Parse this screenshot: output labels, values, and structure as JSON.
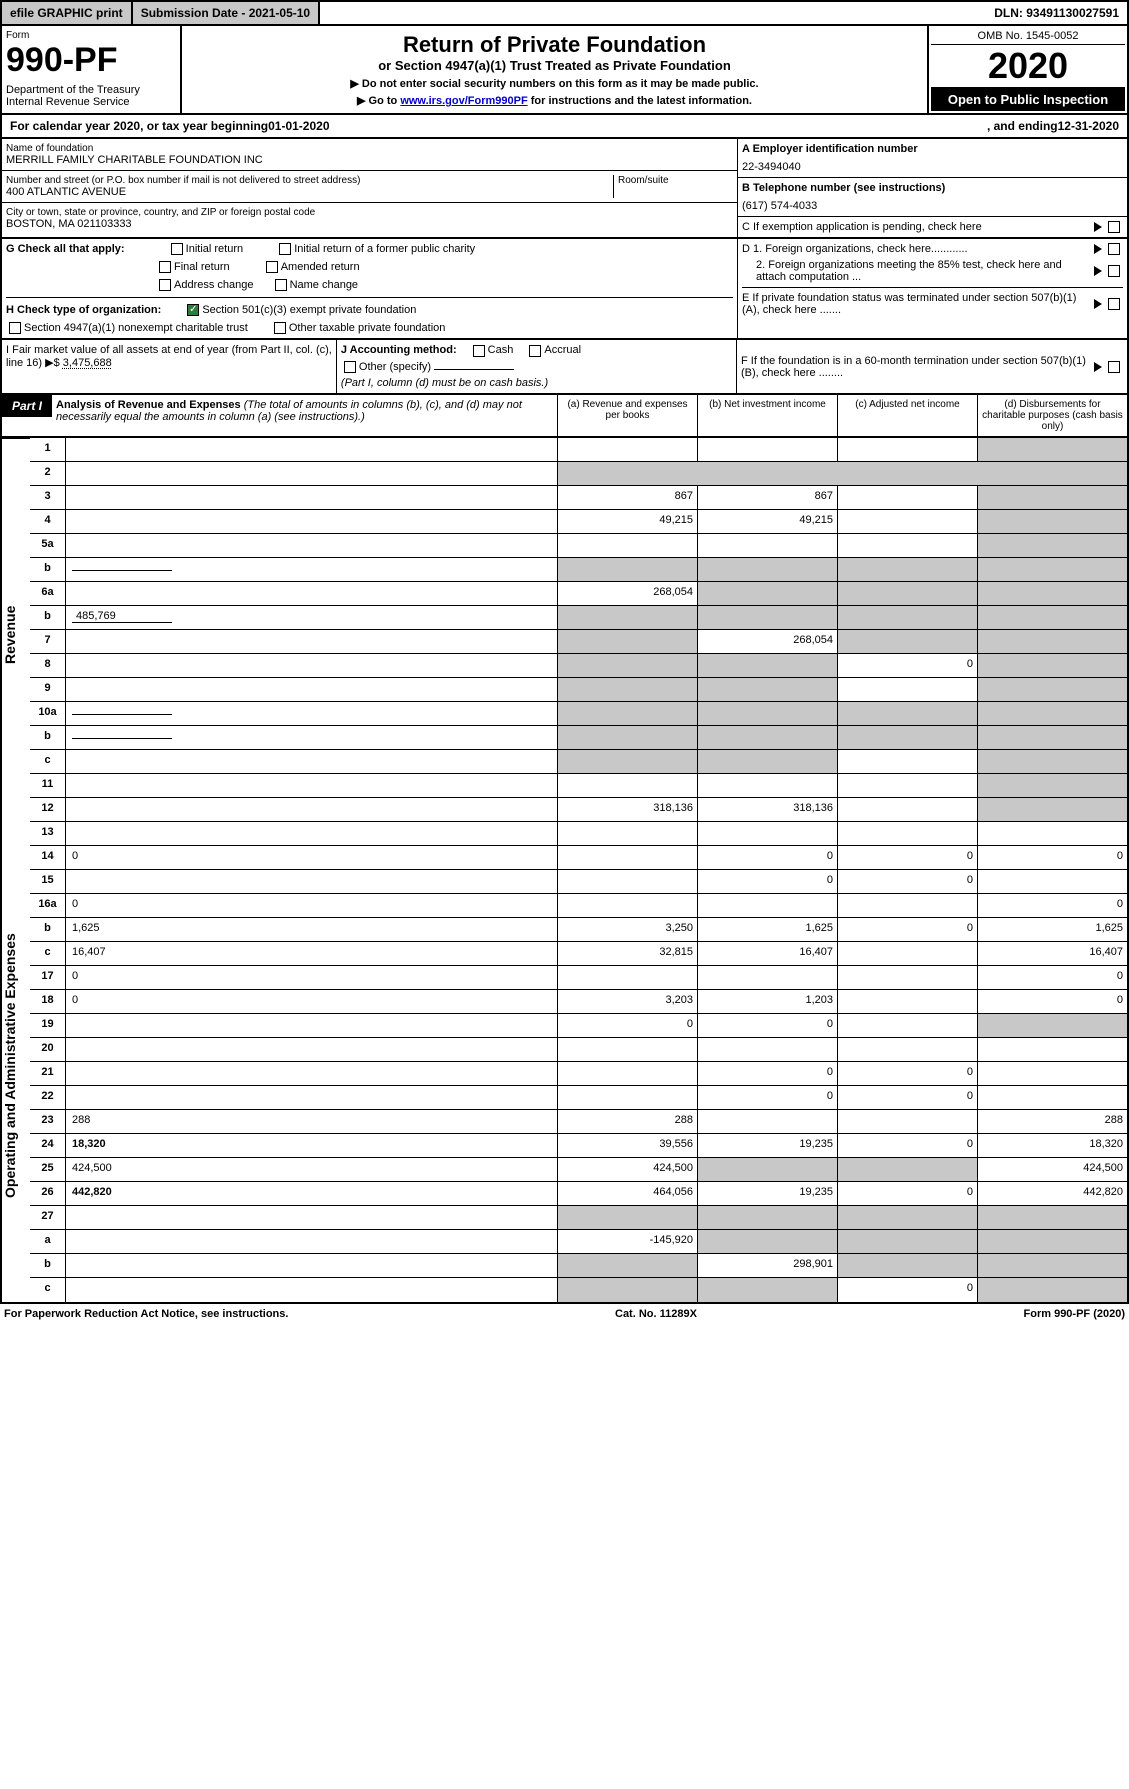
{
  "top": {
    "efile": "efile GRAPHIC print",
    "submission": "Submission Date - 2021-05-10",
    "dln": "DLN: 93491130027591"
  },
  "header": {
    "form_label": "Form",
    "form_no": "990-PF",
    "dept": "Department of the Treasury\nInternal Revenue Service",
    "title": "Return of Private Foundation",
    "subtitle": "or Section 4947(a)(1) Trust Treated as Private Foundation",
    "note1": "▶ Do not enter social security numbers on this form as it may be made public.",
    "note2_pre": "▶ Go to ",
    "note2_link": "www.irs.gov/Form990PF",
    "note2_post": " for instructions and the latest information.",
    "omb": "OMB No. 1545-0052",
    "year": "2020",
    "open": "Open to Public Inspection"
  },
  "cal": {
    "pre": "For calendar year 2020, or tax year beginning ",
    "begin": "01-01-2020",
    "mid": " , and ending ",
    "end": "12-31-2020"
  },
  "info": {
    "name_label": "Name of foundation",
    "name": "MERRILL FAMILY CHARITABLE FOUNDATION INC",
    "addr_label": "Number and street (or P.O. box number if mail is not delivered to street address)",
    "room_label": "Room/suite",
    "addr": "400 ATLANTIC AVENUE",
    "city_label": "City or town, state or province, country, and ZIP or foreign postal code",
    "city": "BOSTON, MA 021103333",
    "ein_label": "A Employer identification number",
    "ein": "22-3494040",
    "phone_label": "B Telephone number (see instructions)",
    "phone": "(617) 574-4033",
    "c_label": "C If exemption application is pending, check here"
  },
  "g": {
    "label": "G Check all that apply:",
    "o1": "Initial return",
    "o2": "Final return",
    "o3": "Address change",
    "o4": "Initial return of a former public charity",
    "o5": "Amended return",
    "o6": "Name change"
  },
  "h": {
    "label": "H Check type of organization:",
    "o1": "Section 501(c)(3) exempt private foundation",
    "o2": "Section 4947(a)(1) nonexempt charitable trust",
    "o3": "Other taxable private foundation"
  },
  "d": {
    "d1": "D 1. Foreign organizations, check here............",
    "d2": "2. Foreign organizations meeting the 85% test, check here and attach computation ...",
    "e": "E If private foundation status was terminated under section 507(b)(1)(A), check here .......",
    "f": "F If the foundation is in a 60-month termination under section 507(b)(1)(B), check here ........"
  },
  "i": {
    "label": "I Fair market value of all assets at end of year (from Part II, col. (c), line 16) ▶$ ",
    "val": "3,475,688"
  },
  "j": {
    "label": "J Accounting method:",
    "o1": "Cash",
    "o2": "Accrual",
    "o3": "Other (specify)",
    "note": "(Part I, column (d) must be on cash basis.)"
  },
  "part1": {
    "label": "Part I",
    "title": "Analysis of Revenue and Expenses",
    "note": "(The total of amounts in columns (b), (c), and (d) may not necessarily equal the amounts in column (a) (see instructions).)",
    "col_a": "(a) Revenue and expenses per books",
    "col_b": "(b) Net investment income",
    "col_c": "(c) Adjusted net income",
    "col_d": "(d) Disbursements for charitable purposes (cash basis only)"
  },
  "side": {
    "rev": "Revenue",
    "exp": "Operating and Administrative Expenses"
  },
  "lines": [
    {
      "n": "1",
      "d": "",
      "a": "",
      "b": "",
      "c": "",
      "shade_d": true
    },
    {
      "n": "2",
      "d": "",
      "a": "",
      "b": "",
      "c": "",
      "nocells": true
    },
    {
      "n": "3",
      "d": "",
      "a": "867",
      "b": "867",
      "c": "",
      "shade_d": true
    },
    {
      "n": "4",
      "d": "",
      "a": "49,215",
      "b": "49,215",
      "c": "",
      "shade_d": true
    },
    {
      "n": "5a",
      "d": "",
      "a": "",
      "b": "",
      "c": "",
      "shade_d": true
    },
    {
      "n": "b",
      "d": "",
      "a": "",
      "b": "",
      "c": "",
      "shade_abcd": true,
      "inline": true
    },
    {
      "n": "6a",
      "d": "",
      "a": "268,054",
      "b": "",
      "c": "",
      "shade_bcd": true
    },
    {
      "n": "b",
      "d": "",
      "a": "",
      "b": "",
      "c": "",
      "inline": true,
      "inline_val": "485,769",
      "shade_abcd": true
    },
    {
      "n": "7",
      "d": "",
      "a": "",
      "b": "268,054",
      "c": "",
      "shade_a": true,
      "shade_cd": true
    },
    {
      "n": "8",
      "d": "",
      "a": "",
      "b": "",
      "c": "0",
      "shade_ab": true,
      "shade_d": true
    },
    {
      "n": "9",
      "d": "",
      "a": "",
      "b": "",
      "c": "",
      "shade_ab": true,
      "shade_d": true
    },
    {
      "n": "10a",
      "d": "",
      "a": "",
      "b": "",
      "c": "",
      "inline": true,
      "shade_abcd": true
    },
    {
      "n": "b",
      "d": "",
      "a": "",
      "b": "",
      "c": "",
      "inline": true,
      "shade_abcd": true
    },
    {
      "n": "c",
      "d": "",
      "a": "",
      "b": "",
      "c": "",
      "shade_ab": true,
      "shade_d": true
    },
    {
      "n": "11",
      "d": "",
      "a": "",
      "b": "",
      "c": "",
      "shade_d": true
    },
    {
      "n": "12",
      "d": "",
      "a": "318,136",
      "b": "318,136",
      "c": "",
      "bold": true,
      "shade_d": true
    },
    {
      "n": "13",
      "d": "",
      "a": "",
      "b": "",
      "c": ""
    },
    {
      "n": "14",
      "d": "0",
      "a": "",
      "b": "0",
      "c": "0"
    },
    {
      "n": "15",
      "d": "",
      "a": "",
      "b": "0",
      "c": "0"
    },
    {
      "n": "16a",
      "d": "0",
      "a": "",
      "b": "",
      "c": ""
    },
    {
      "n": "b",
      "d": "1,625",
      "a": "3,250",
      "b": "1,625",
      "c": "0"
    },
    {
      "n": "c",
      "d": "16,407",
      "a": "32,815",
      "b": "16,407",
      "c": ""
    },
    {
      "n": "17",
      "d": "0",
      "a": "",
      "b": "",
      "c": ""
    },
    {
      "n": "18",
      "d": "0",
      "a": "3,203",
      "b": "1,203",
      "c": ""
    },
    {
      "n": "19",
      "d": "",
      "a": "0",
      "b": "0",
      "c": "",
      "shade_d": true
    },
    {
      "n": "20",
      "d": "",
      "a": "",
      "b": "",
      "c": ""
    },
    {
      "n": "21",
      "d": "",
      "a": "",
      "b": "0",
      "c": "0"
    },
    {
      "n": "22",
      "d": "",
      "a": "",
      "b": "0",
      "c": "0"
    },
    {
      "n": "23",
      "d": "288",
      "a": "288",
      "b": "",
      "c": ""
    },
    {
      "n": "24",
      "d": "18,320",
      "a": "39,556",
      "b": "19,235",
      "c": "0",
      "bold": true
    },
    {
      "n": "25",
      "d": "424,500",
      "a": "424,500",
      "b": "",
      "c": "",
      "shade_bc": true
    },
    {
      "n": "26",
      "d": "442,820",
      "a": "464,056",
      "b": "19,235",
      "c": "0",
      "bold": true
    },
    {
      "n": "27",
      "d": "",
      "a": "",
      "b": "",
      "c": "",
      "shade_abcd": true
    },
    {
      "n": "a",
      "d": "",
      "a": "-145,920",
      "b": "",
      "c": "",
      "bold": true,
      "shade_bcd": true
    },
    {
      "n": "b",
      "d": "",
      "a": "",
      "b": "298,901",
      "c": "",
      "bold": true,
      "shade_a": true,
      "shade_cd": true
    },
    {
      "n": "c",
      "d": "",
      "a": "",
      "b": "",
      "c": "0",
      "bold": true,
      "shade_ab": true,
      "shade_d": true
    }
  ],
  "footer": {
    "l": "For Paperwork Reduction Act Notice, see instructions.",
    "c": "Cat. No. 11289X",
    "r": "Form 990-PF (2020)"
  }
}
